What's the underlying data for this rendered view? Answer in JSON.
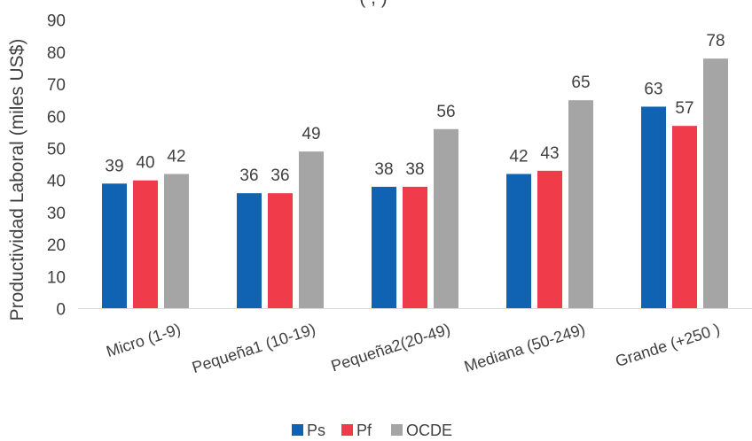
{
  "chart_data": {
    "type": "bar",
    "title": "",
    "title_visible_fragment": "(                 ,                )",
    "xlabel": "",
    "ylabel": "Productividad Laboral (miles US$)",
    "ylim": [
      0,
      90
    ],
    "yticks": [
      0,
      10,
      20,
      30,
      40,
      50,
      60,
      70,
      80,
      90
    ],
    "grid": false,
    "legend_position": "bottom",
    "categories": [
      "Micro (1-9)",
      "Pequeña1 (10-19)",
      "Pequeña2(20-49)",
      "Mediana (50-249)",
      "Grande (+250 )"
    ],
    "series": [
      {
        "name": "Ps",
        "color": "#0F63B2",
        "values": [
          39,
          36,
          38,
          42,
          63
        ],
        "labels": [
          "39",
          "36",
          "38",
          "42",
          "63"
        ]
      },
      {
        "name": "Pf",
        "color": "#EF3B4A",
        "values": [
          40,
          36,
          38,
          43,
          57
        ],
        "labels": [
          "40",
          "36",
          "38",
          "43",
          "57"
        ]
      },
      {
        "name": "OCDE",
        "color": "#A5A5A5",
        "values": [
          42,
          49,
          56,
          65,
          78
        ],
        "labels": [
          "42",
          "49",
          "56",
          "65",
          "78"
        ]
      }
    ]
  }
}
